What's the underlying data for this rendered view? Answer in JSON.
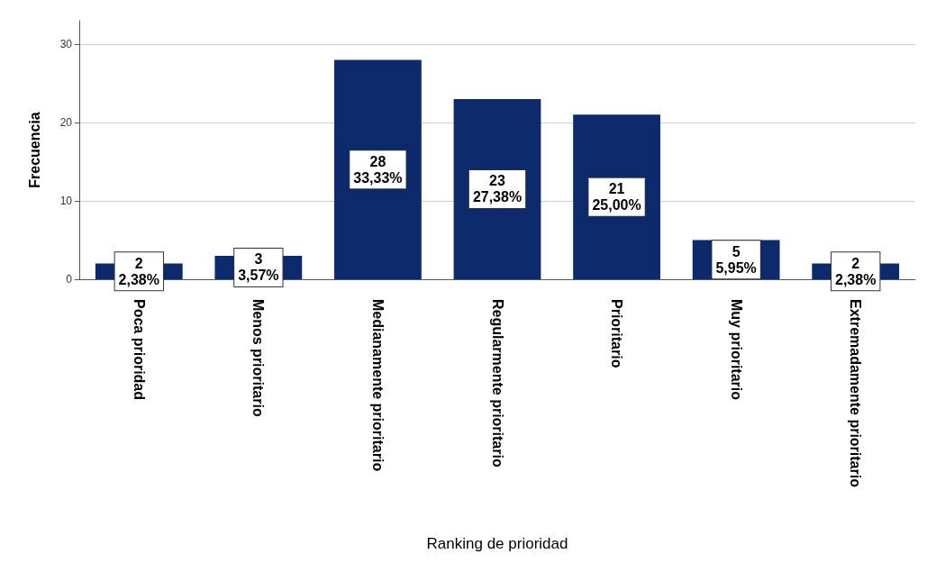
{
  "chart_data": {
    "type": "bar",
    "xlabel": "Ranking de prioridad",
    "ylabel": "Frecuencia",
    "categories": [
      "Poca prioridad",
      "Menos prioritario",
      "Medianamente prioritario",
      "Regularmente prioritario",
      "Prioritario",
      "Muy prioritario",
      "Extremadamente prioritario"
    ],
    "values": [
      2,
      3,
      28,
      23,
      21,
      5,
      2
    ],
    "value_labels": [
      "2\n2,38%",
      "3\n3,57%",
      "28\n33,33%",
      "23\n27,38%",
      "21\n25,00%",
      "5\n5,95%",
      "2\n2,38%"
    ],
    "color": "#0c2a6b",
    "ylim": [
      0,
      33
    ],
    "yticks": [
      0,
      10,
      20,
      30
    ],
    "grid": "y"
  }
}
